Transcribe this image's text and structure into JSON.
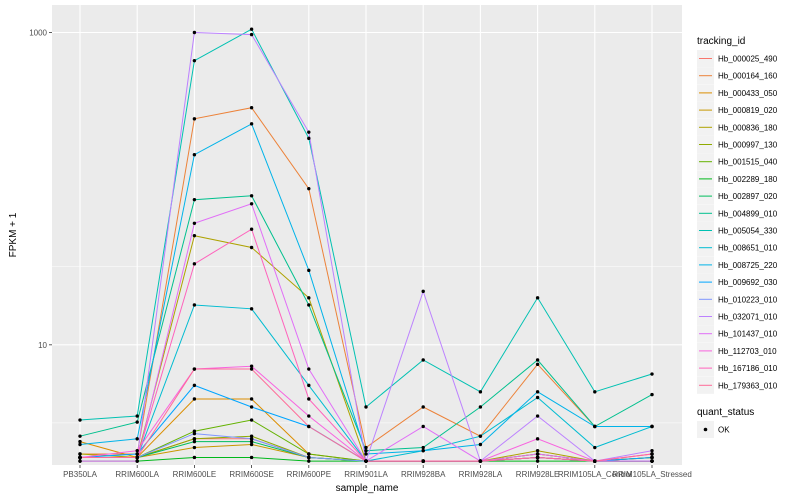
{
  "chart_data": {
    "type": "line",
    "xlabel": "sample_name",
    "ylabel": "FPKM + 1",
    "y_scale": "log10",
    "ylim": [
      1.7,
      1500
    ],
    "y_ticks": [
      10,
      1000
    ],
    "y_tick_labels": [
      "10",
      "1000"
    ],
    "grid": true,
    "legend_placement": "right",
    "categories": [
      "PB350LA",
      "RRIM600LA",
      "RRIM600LE",
      "RRIM600SE",
      "RRIM600PE",
      "RRIM901LA",
      "RRIM928BA",
      "RRIM928LA",
      "RRIM928LE",
      "RRIM105LA_Control",
      "RRIM105LA_Stressed"
    ],
    "series": [
      {
        "name": "Hb_000025_490",
        "color": "#F8766D",
        "values": [
          1.9,
          1.9,
          2.5,
          2.5,
          1.9,
          1.8,
          1.8,
          1.8,
          1.9,
          1.8,
          1.8
        ]
      },
      {
        "name": "Hb_000164_160",
        "color": "#EC8239",
        "values": [
          2.0,
          2.0,
          280,
          330,
          100,
          2.2,
          4.0,
          2.6,
          7.5,
          3.0,
          3.0
        ]
      },
      {
        "name": "Hb_000433_050",
        "color": "#DB8E00",
        "values": [
          2.4,
          1.9,
          4.5,
          4.5,
          2.0,
          1.8,
          1.8,
          1.8,
          2.0,
          1.8,
          1.9
        ]
      },
      {
        "name": "Hb_000819_020",
        "color": "#C79800",
        "values": [
          1.9,
          1.9,
          2.2,
          2.3,
          1.9,
          1.8,
          1.8,
          1.8,
          1.9,
          1.8,
          1.9
        ]
      },
      {
        "name": "Hb_000836_180",
        "color": "#AEA200",
        "values": [
          2.0,
          1.9,
          50,
          42,
          20,
          1.8,
          1.8,
          1.8,
          2.1,
          1.8,
          1.8
        ]
      },
      {
        "name": "Hb_000997_130",
        "color": "#8FAA00",
        "values": [
          1.9,
          1.9,
          2.5,
          2.6,
          1.9,
          1.8,
          1.8,
          1.8,
          1.9,
          1.8,
          1.9
        ]
      },
      {
        "name": "Hb_001515_040",
        "color": "#64B200",
        "values": [
          1.9,
          1.9,
          2.8,
          3.3,
          2.0,
          1.8,
          1.8,
          1.8,
          2.0,
          1.8,
          1.8
        ]
      },
      {
        "name": "Hb_002289_180",
        "color": "#00B81B",
        "values": [
          1.8,
          1.8,
          1.9,
          1.9,
          1.8,
          1.8,
          1.8,
          1.8,
          1.8,
          1.8,
          1.8
        ]
      },
      {
        "name": "Hb_002897_020",
        "color": "#00BD5C",
        "values": [
          1.9,
          1.9,
          2.4,
          2.4,
          1.9,
          1.8,
          1.8,
          1.8,
          1.9,
          1.8,
          1.8
        ]
      },
      {
        "name": "Hb_004899_010",
        "color": "#00C08E",
        "values": [
          2.6,
          3.2,
          85,
          90,
          18,
          2.1,
          2.2,
          4.0,
          8.0,
          3.0,
          4.8
        ]
      },
      {
        "name": "Hb_005054_330",
        "color": "#00C1B2",
        "values": [
          3.3,
          3.5,
          660,
          1050,
          210,
          4.0,
          8.0,
          5.0,
          20,
          5.0,
          6.5
        ]
      },
      {
        "name": "Hb_008651_010",
        "color": "#00BCD1",
        "values": [
          1.9,
          1.9,
          18,
          17,
          5.5,
          1.8,
          2.1,
          2.6,
          4.6,
          2.2,
          3.0
        ]
      },
      {
        "name": "Hb_008725_220",
        "color": "#00B3E9",
        "values": [
          2.3,
          2.5,
          165,
          260,
          30,
          2.0,
          2.1,
          2.3,
          5.0,
          3.0,
          3.0
        ]
      },
      {
        "name": "Hb_009692_030",
        "color": "#00A5FF",
        "values": [
          1.9,
          2.0,
          5.5,
          4.0,
          3.0,
          1.8,
          1.8,
          1.8,
          1.9,
          1.8,
          1.9
        ]
      },
      {
        "name": "Hb_010223_010",
        "color": "#7F96FF",
        "values": [
          1.9,
          1.9,
          2.7,
          2.5,
          1.9,
          1.8,
          1.8,
          1.8,
          1.9,
          1.8,
          1.8
        ]
      },
      {
        "name": "Hb_032071_010",
        "color": "#BC81FF",
        "values": [
          1.9,
          1.9,
          1000,
          970,
          230,
          1.8,
          22,
          1.8,
          3.5,
          1.8,
          2.1
        ]
      },
      {
        "name": "Hb_101437_010",
        "color": "#E16EF7",
        "values": [
          1.8,
          1.8,
          60,
          80,
          7.0,
          1.8,
          3.0,
          1.8,
          2.0,
          1.8,
          1.8
        ]
      },
      {
        "name": "Hb_112703_010",
        "color": "#F863DF",
        "values": [
          1.9,
          2.1,
          7.0,
          7.3,
          3.5,
          1.8,
          1.8,
          1.8,
          2.5,
          1.8,
          2.0
        ]
      },
      {
        "name": "Hb_167186_010",
        "color": "#FF62BC",
        "values": [
          1.9,
          1.9,
          33,
          55,
          4.5,
          1.8,
          1.8,
          1.8,
          1.9,
          1.8,
          2.0
        ]
      },
      {
        "name": "Hb_179363_010",
        "color": "#FF6A98",
        "values": [
          1.9,
          1.9,
          7.0,
          7.0,
          3.0,
          1.8,
          1.8,
          1.8,
          1.9,
          1.8,
          2.0
        ]
      }
    ],
    "legend": {
      "title": "tracking_id",
      "shape_title": "quant_status",
      "shape_entries": [
        "OK"
      ]
    }
  }
}
